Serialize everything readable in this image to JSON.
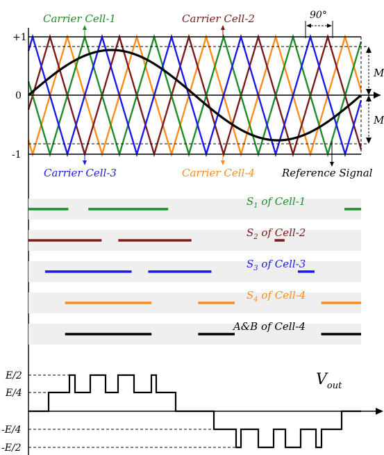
{
  "top_plot": {
    "y_ticks": {
      "plus_one": "+1",
      "zero": "0",
      "minus_one": "-1"
    },
    "modulation_label_upper": "M",
    "modulation_label_lower": "M",
    "phase_shift_label": "90°",
    "carrier_labels": {
      "cell1": "Carrier Cell-1",
      "cell2": "Carrier Cell-2",
      "cell3": "Carrier Cell-3",
      "cell4": "Carrier Cell-4"
    },
    "reference_label": "Reference Signal"
  },
  "colors": {
    "cell1": "#1e8c28",
    "cell2": "#7a1a1a",
    "cell3": "#1a1ae6",
    "cell4": "#ff8c1a",
    "reference": "#000000",
    "band": "#efefef"
  },
  "switching_rows": [
    {
      "name": "s1",
      "label_main": "S",
      "label_sub": "1",
      "label_rest": " of  Cell-1",
      "color_key": "cell1",
      "segments": [
        [
          0.0,
          0.12
        ],
        [
          0.18,
          0.42
        ],
        [
          0.95,
          1.0
        ]
      ]
    },
    {
      "name": "s2",
      "label_main": "S",
      "label_sub": "2",
      "label_rest": " of  Cell-2",
      "color_key": "cell2",
      "segments": [
        [
          0.0,
          0.22
        ],
        [
          0.27,
          0.49
        ],
        [
          0.74,
          0.77
        ]
      ]
    },
    {
      "name": "s3",
      "label_main": "S",
      "label_sub": "3",
      "label_rest": " of  Cell-3",
      "color_key": "cell3",
      "segments": [
        [
          0.05,
          0.31
        ],
        [
          0.36,
          0.55
        ],
        [
          0.81,
          0.86
        ]
      ]
    },
    {
      "name": "s4",
      "label_main": "S",
      "label_sub": "4",
      "label_rest": " of  Cell-4",
      "color_key": "cell4",
      "segments": [
        [
          0.11,
          0.37
        ],
        [
          0.51,
          0.62
        ],
        [
          0.88,
          1.0
        ]
      ]
    },
    {
      "name": "ab",
      "label_main": "A&B",
      "label_sub": "",
      "label_rest": "  of  Cell-4",
      "color_key": "reference",
      "segments": [
        [
          0.11,
          0.37
        ],
        [
          0.51,
          0.62
        ],
        [
          0.88,
          1.0
        ]
      ]
    }
  ],
  "vout": {
    "label_main": "V",
    "label_sub": "out",
    "levels": {
      "e2": "E/2",
      "e4": "E/4",
      "me4": "-E/4",
      "me2": "-E/2"
    }
  }
}
